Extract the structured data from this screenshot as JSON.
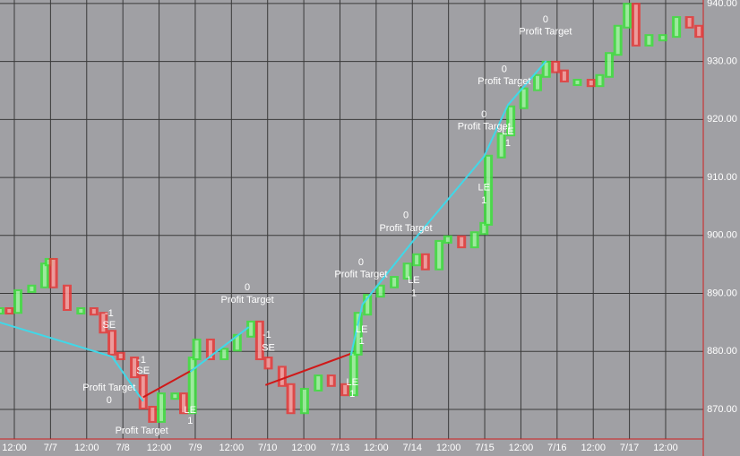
{
  "chart_data": {
    "type": "price_bars",
    "xlim": [
      0.302,
      10.02
    ],
    "ylim": [
      864.9,
      940.6
    ],
    "grid": true,
    "xticks": [
      {
        "value": 0.5,
        "label": "12:00"
      },
      {
        "value": 1,
        "label": "7/7"
      },
      {
        "value": 1.5,
        "label": "12:00"
      },
      {
        "value": 2,
        "label": "7/8"
      },
      {
        "value": 2.5,
        "label": "12:00"
      },
      {
        "value": 3,
        "label": "7/9"
      },
      {
        "value": 3.5,
        "label": "12:00"
      },
      {
        "value": 4,
        "label": "7/10"
      },
      {
        "value": 4.5,
        "label": "12:00"
      },
      {
        "value": 5,
        "label": "7/13"
      },
      {
        "value": 5.5,
        "label": "12:00"
      },
      {
        "value": 6,
        "label": "7/14"
      },
      {
        "value": 6.5,
        "label": "12:00"
      },
      {
        "value": 7,
        "label": "7/15"
      },
      {
        "value": 7.5,
        "label": "12:00"
      },
      {
        "value": 8,
        "label": "7/16"
      },
      {
        "value": 8.5,
        "label": "12:00"
      },
      {
        "value": 9,
        "label": "7/17"
      },
      {
        "value": 9.5,
        "label": "12:00"
      }
    ],
    "yticks": [
      {
        "value": 870,
        "label": "870.00"
      },
      {
        "value": 880,
        "label": "880.00"
      },
      {
        "value": 890,
        "label": "890.00"
      },
      {
        "value": 900,
        "label": "900.00"
      },
      {
        "value": 910,
        "label": "910.00"
      },
      {
        "value": 920,
        "label": "920.00"
      },
      {
        "value": 930,
        "label": "930.00"
      },
      {
        "value": 940,
        "label": "940.00"
      }
    ],
    "series": [
      {
        "up_color": "#3ee03e",
        "down_color": "#e83a3a",
        "x": [
          0.3,
          0.43,
          0.55,
          0.74,
          0.92,
          0.98,
          1.04,
          1.23,
          1.42,
          1.6,
          1.73,
          1.85,
          1.97,
          2.16,
          2.28,
          2.41,
          2.53,
          2.72,
          2.84,
          2.96,
          3.02,
          3.21,
          3.4,
          3.58,
          3.77,
          3.89,
          4.01,
          4.2,
          4.32,
          4.51,
          4.7,
          4.88,
          5.07,
          5.19,
          5.25,
          5.38,
          5.56,
          5.75,
          5.93,
          6.06,
          6.18,
          6.37,
          6.49,
          6.68,
          6.86,
          6.99,
          7.05,
          7.23,
          7.36,
          7.54,
          7.73,
          7.85,
          7.98,
          8.1,
          8.28,
          8.47,
          8.59,
          8.72,
          8.84,
          8.97,
          9.09,
          9.27,
          9.46,
          9.65,
          9.83,
          9.96
        ],
        "values": [
          887.3,
          886.8,
          890.4,
          891.2,
          895.0,
          895.8,
          891.2,
          887.3,
          887.3,
          886.5,
          883.4,
          879.6,
          878.8,
          875.7,
          870.3,
          868.0,
          872.6,
          872.6,
          869.5,
          878.8,
          881.9,
          878.8,
          880.3,
          882.7,
          885.0,
          878.8,
          877.2,
          874.2,
          869.5,
          873.4,
          875.7,
          874.2,
          872.6,
          879.6,
          886.5,
          889.6,
          891.2,
          892.7,
          895.0,
          896.6,
          894.3,
          898.9,
          899.7,
          898.1,
          900.4,
          902.0,
          913.6,
          917.4,
          922.1,
          925.2,
          927.5,
          929.8,
          928.3,
          926.7,
          926.7,
          925.9,
          927.5,
          931.3,
          936.0,
          939.8,
          932.9,
          934.4,
          934.4,
          937.5,
          936.0,
          934.4
        ]
      }
    ],
    "trades": [
      {
        "color": "#40d8e8",
        "x": [
          0.3,
          1.85,
          2.28
        ],
        "values": [
          885.0,
          879.1,
          871.4
        ]
      },
      {
        "color": "#d01818",
        "x": [
          2.28,
          2.96
        ],
        "values": [
          872.1,
          876.8
        ]
      },
      {
        "color": "#40d8e8",
        "x": [
          2.93,
          3.74
        ],
        "values": [
          876.5,
          884.2
        ]
      },
      {
        "color": "#d01818",
        "x": [
          3.97,
          5.15
        ],
        "values": [
          874.2,
          879.6
        ]
      },
      {
        "color": "#40d8e8",
        "x": [
          5.15,
          5.31,
          6.02,
          6.99,
          7.32,
          7.85
        ],
        "values": [
          879.3,
          888.1,
          899.2,
          913.6,
          922.5,
          930.1
        ]
      }
    ],
    "annotations": [
      {
        "text": "-1",
        "x": 1.81,
        "y": 886.5
      },
      {
        "text": "SE",
        "x": 1.81,
        "y": 884.5
      },
      {
        "text": "Profit Target",
        "x": 1.81,
        "y": 873.7
      },
      {
        "text": "0",
        "x": 1.81,
        "y": 871.5
      },
      {
        "text": "-1",
        "x": 2.26,
        "y": 878.5
      },
      {
        "text": "SE",
        "x": 2.28,
        "y": 876.6
      },
      {
        "text": "Profit Target",
        "x": 2.26,
        "y": 866.3
      },
      {
        "text": "0",
        "x": 3.72,
        "y": 891.0
      },
      {
        "text": "Profit Target",
        "x": 3.72,
        "y": 888.8
      },
      {
        "text": "LE",
        "x": 2.93,
        "y": 869.8
      },
      {
        "text": "1",
        "x": 2.93,
        "y": 868.0
      },
      {
        "text": "-1",
        "x": 3.99,
        "y": 882.8
      },
      {
        "text": "SE",
        "x": 4.01,
        "y": 880.6
      },
      {
        "text": "LE",
        "x": 5.17,
        "y": 874.6
      },
      {
        "text": "1",
        "x": 5.17,
        "y": 872.6
      },
      {
        "text": "LE",
        "x": 5.3,
        "y": 883.7
      },
      {
        "text": "1",
        "x": 5.3,
        "y": 881.7
      },
      {
        "text": "0",
        "x": 5.29,
        "y": 895.3
      },
      {
        "text": "Profit Target",
        "x": 5.29,
        "y": 893.2
      },
      {
        "text": "0",
        "x": 5.91,
        "y": 903.4
      },
      {
        "text": "Profit Target",
        "x": 5.91,
        "y": 901.2
      },
      {
        "text": "LE",
        "x": 6.02,
        "y": 892.2
      },
      {
        "text": "1",
        "x": 6.02,
        "y": 890.0
      },
      {
        "text": "LE",
        "x": 6.99,
        "y": 908.2
      },
      {
        "text": "1",
        "x": 6.99,
        "y": 906.0
      },
      {
        "text": "0",
        "x": 6.99,
        "y": 920.8
      },
      {
        "text": "Profit Target",
        "x": 6.99,
        "y": 918.7
      },
      {
        "text": "LE",
        "x": 7.32,
        "y": 917.9
      },
      {
        "text": "1",
        "x": 7.32,
        "y": 915.9
      },
      {
        "text": "0",
        "x": 7.27,
        "y": 928.6
      },
      {
        "text": "Profit Target",
        "x": 7.27,
        "y": 926.5
      },
      {
        "text": "0",
        "x": 7.84,
        "y": 937.2
      },
      {
        "text": "Profit Target",
        "x": 7.84,
        "y": 935.1
      }
    ]
  }
}
